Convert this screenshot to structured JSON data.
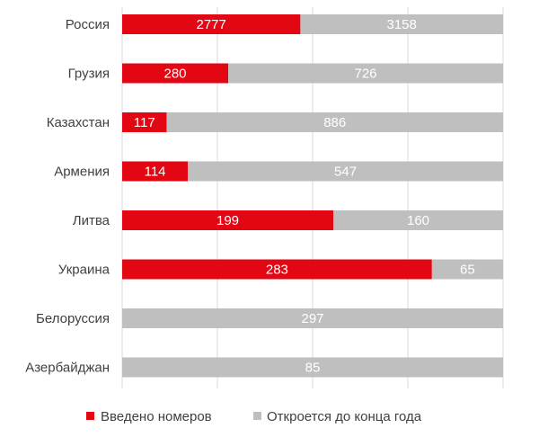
{
  "chart_data": {
    "type": "bar",
    "orientation": "horizontal",
    "stacked": "100%",
    "categories": [
      "Россия",
      "Грузия",
      "Казахстан",
      "Армения",
      "Литва",
      "Украина",
      "Белоруссия",
      "Азербайджан"
    ],
    "series": [
      {
        "name": "Введено номеров",
        "color": "#e30613",
        "values": [
          2777,
          280,
          117,
          114,
          199,
          283,
          0,
          0
        ],
        "labels": [
          "2777",
          "280",
          "117",
          "114",
          "199",
          "283",
          "",
          ""
        ]
      },
      {
        "name": "Откроется до конца года",
        "color": "#bfbfbf",
        "values": [
          3158,
          726,
          886,
          547,
          160,
          65,
          297,
          85
        ],
        "labels": [
          "3158",
          "726",
          "886",
          "547",
          "160",
          "65",
          "297",
          "85"
        ]
      }
    ],
    "legend": "bottom",
    "gridlines": true,
    "gridline_color": "#d9d9d9"
  }
}
